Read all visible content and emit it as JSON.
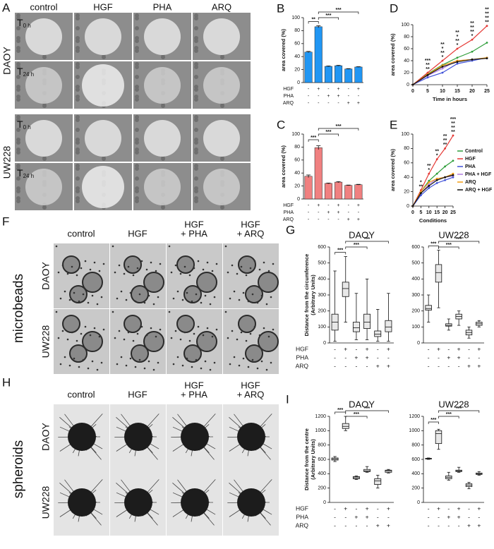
{
  "figure": {
    "A": {
      "letter": "A",
      "columns": [
        "control",
        "HGF",
        "PHA",
        "ARQ"
      ],
      "rows": [
        {
          "cell": "DAOY",
          "times": [
            {
              "base": "T",
              "sub": "0 h"
            },
            {
              "base": "T",
              "sub": "24 h"
            }
          ]
        },
        {
          "cell": "UW228",
          "times": [
            {
              "base": "T",
              "sub": "0 h"
            },
            {
              "base": "T",
              "sub": "24 h"
            }
          ]
        }
      ]
    },
    "F": {
      "letter": "F",
      "side": "microbeads",
      "columns": [
        [
          "control"
        ],
        [
          "HGF"
        ],
        [
          "HGF",
          "+ PHA"
        ],
        [
          "HGF",
          "+ ARQ"
        ]
      ],
      "rows": [
        "DAOY",
        "UW228"
      ]
    },
    "H": {
      "letter": "H",
      "side": "spheroids",
      "columns": [
        [
          "control"
        ],
        [
          "HGF"
        ],
        [
          "HGF",
          "+ PHA"
        ],
        [
          "HGF",
          "+ ARQ"
        ]
      ],
      "rows": [
        "DAOY",
        "UW228"
      ]
    }
  },
  "chart_data": [
    {
      "type": "bar",
      "panel": "B",
      "ylabel": "area covered (%)",
      "color": "#2196f3",
      "values": [
        47,
        86,
        25,
        26,
        21,
        24
      ],
      "errors": [
        1,
        1.5,
        0.6,
        0.6,
        0.5,
        0.5
      ],
      "ylim": [
        0,
        100
      ],
      "yticks": [
        0,
        20,
        40,
        60,
        80,
        100
      ],
      "brackets": [
        {
          "from": 0,
          "to": 1,
          "text": "**"
        },
        {
          "from": 1,
          "to": 3,
          "text": "***"
        },
        {
          "from": 1,
          "to": 5,
          "text": "***"
        }
      ],
      "conditions": [
        {
          "name": "HGF",
          "signs": [
            "-",
            "+",
            "-",
            "+",
            "-",
            "+"
          ]
        },
        {
          "name": "PHA",
          "signs": [
            "-",
            "-",
            "+",
            "+",
            "-",
            "-"
          ]
        },
        {
          "name": "ARQ",
          "signs": [
            "-",
            "-",
            "-",
            "-",
            "+",
            "+"
          ]
        }
      ]
    },
    {
      "type": "bar",
      "panel": "C",
      "ylabel": "area covered (%)",
      "color": "#f08080",
      "values": [
        35,
        79,
        24,
        26,
        21,
        22
      ],
      "errors": [
        2,
        3,
        0.6,
        0.8,
        0.5,
        0.6
      ],
      "ylim": [
        0,
        100
      ],
      "yticks": [
        0,
        20,
        40,
        60,
        80,
        100
      ],
      "brackets": [
        {
          "from": 0,
          "to": 1,
          "text": "***"
        },
        {
          "from": 1,
          "to": 3,
          "text": "***"
        },
        {
          "from": 1,
          "to": 5,
          "text": "***"
        }
      ],
      "conditions": [
        {
          "name": "HGF",
          "signs": [
            "-",
            "+",
            "-",
            "+",
            "-",
            "+"
          ]
        },
        {
          "name": "PHA",
          "signs": [
            "-",
            "-",
            "+",
            "+",
            "-",
            "-"
          ]
        },
        {
          "name": "ARQ",
          "signs": [
            "-",
            "-",
            "-",
            "-",
            "+",
            "+"
          ]
        }
      ]
    },
    {
      "type": "line",
      "panel": "D",
      "ylabel": "area covered (%)",
      "xlabel": "Time in hours",
      "x": [
        0,
        5,
        10,
        15,
        20,
        25
      ],
      "xlim": [
        0,
        25
      ],
      "xticks": [
        0,
        5,
        10,
        15,
        20,
        25
      ],
      "ylim": [
        0,
        100
      ],
      "yticks": [
        0,
        20,
        40,
        60,
        80,
        100
      ],
      "series": [
        {
          "color": "#2e9e3a",
          "values": [
            0,
            18,
            33,
            45,
            55,
            70
          ]
        },
        {
          "color": "#e53935",
          "values": [
            0,
            20,
            40,
            60,
            75,
            98
          ]
        },
        {
          "color": "#3f51d8",
          "values": [
            0,
            12,
            20,
            35,
            40,
            45
          ]
        },
        {
          "color": "#b07ce0",
          "values": [
            0,
            15,
            27,
            40,
            42,
            44
          ]
        },
        {
          "color": "#f39c12",
          "values": [
            0,
            17,
            32,
            40,
            42,
            45
          ]
        },
        {
          "color": "#111111",
          "values": [
            0,
            16,
            30,
            38,
            42,
            44
          ]
        }
      ],
      "stars": [
        {
          "x": 5,
          "marks": [
            {
              "text": "**",
              "color": "#3f51d8"
            },
            {
              "text": "**",
              "color": "#b07ce0"
            },
            {
              "text": "***",
              "color": "#e53935"
            }
          ]
        },
        {
          "x": 10,
          "marks": [
            {
              "text": "*",
              "color": "#3f51d8"
            },
            {
              "text": "**",
              "color": "#b07ce0"
            },
            {
              "text": "*",
              "color": "#f39c12"
            },
            {
              "text": "**",
              "color": "#e53935"
            }
          ]
        },
        {
          "x": 15,
          "marks": [
            {
              "text": "*",
              "color": "#3f51d8"
            },
            {
              "text": "**",
              "color": "#b07ce0"
            },
            {
              "text": "*",
              "color": "#f39c12"
            },
            {
              "text": "**",
              "color": "#e53935"
            }
          ]
        },
        {
          "x": 20,
          "marks": [
            {
              "text": "*",
              "color": "#e53935"
            },
            {
              "text": "**",
              "color": "#3f51d8"
            },
            {
              "text": "**",
              "color": "#b07ce0"
            },
            {
              "text": "**",
              "color": "#f39c12"
            }
          ]
        },
        {
          "x": 25,
          "marks": [
            {
              "text": "**",
              "color": "#f39c12"
            },
            {
              "text": "**",
              "color": "#b07ce0"
            },
            {
              "text": "**",
              "color": "#3f51d8"
            },
            {
              "text": "**",
              "color": "#e53935"
            }
          ]
        }
      ]
    },
    {
      "type": "line",
      "panel": "E",
      "ylabel": "area covered (%)",
      "xlabel": "Conditions",
      "legend": "right",
      "x": [
        0,
        5,
        10,
        15,
        20,
        25
      ],
      "xlim": [
        0,
        25
      ],
      "xticks": [
        0,
        5,
        10,
        15,
        20,
        25
      ],
      "ylim": [
        0,
        100
      ],
      "yticks": [
        0,
        20,
        40,
        60,
        80,
        100
      ],
      "series": [
        {
          "name": "Control",
          "color": "#2e9e3a",
          "values": [
            0,
            20,
            35,
            45,
            55,
            63
          ]
        },
        {
          "name": "HGF",
          "color": "#e53935",
          "values": [
            0,
            22,
            45,
            65,
            80,
            98
          ]
        },
        {
          "name": "PHA",
          "color": "#3f51d8",
          "values": [
            0,
            15,
            25,
            32,
            36,
            40
          ]
        },
        {
          "name": "PHA + HGF",
          "color": "#b07ce0",
          "values": [
            0,
            18,
            30,
            38,
            40,
            42
          ]
        },
        {
          "name": "ARQ",
          "color": "#f39c12",
          "values": [
            0,
            20,
            33,
            38,
            40,
            45
          ]
        },
        {
          "name": "ARQ + HGF",
          "color": "#111111",
          "values": [
            0,
            18,
            28,
            36,
            40,
            43
          ]
        }
      ],
      "stars": [
        {
          "x": 5,
          "marks": [
            {
              "text": "**",
              "color": "#3f51d8"
            },
            {
              "text": "*",
              "color": "#e53935"
            }
          ]
        },
        {
          "x": 10,
          "marks": [
            {
              "text": "*",
              "color": "#3f51d8"
            },
            {
              "text": "**",
              "color": "#e53935"
            }
          ]
        },
        {
          "x": 15,
          "marks": [
            {
              "text": "*",
              "color": "#3f51d8"
            },
            {
              "text": "**",
              "color": "#e53935"
            }
          ]
        },
        {
          "x": 20,
          "marks": [
            {
              "text": "**",
              "color": "#3f51d8"
            },
            {
              "text": "**",
              "color": "#b07ce0"
            },
            {
              "text": "**",
              "color": "#f39c12"
            }
          ]
        },
        {
          "x": 25,
          "marks": [
            {
              "text": "**",
              "color": "#f39c12"
            },
            {
              "text": "**",
              "color": "#3f51d8"
            },
            {
              "text": "**",
              "color": "#b07ce0"
            },
            {
              "text": "***",
              "color": "#e53935"
            }
          ]
        }
      ]
    },
    {
      "type": "box",
      "panel": "G",
      "title": "DAOY",
      "ylabel": [
        "Distance from the circumference",
        "(Arbitrary Units)"
      ],
      "ylim": [
        0,
        600
      ],
      "yticks": [
        0,
        100,
        200,
        300,
        400,
        500,
        600
      ],
      "boxes": [
        [
          10,
          80,
          130,
          180,
          450
        ],
        [
          130,
          290,
          340,
          380,
          540
        ],
        [
          20,
          70,
          95,
          130,
          310
        ],
        [
          20,
          90,
          130,
          180,
          400
        ],
        [
          10,
          40,
          55,
          75,
          210
        ],
        [
          10,
          70,
          100,
          140,
          310
        ]
      ],
      "brackets": [
        {
          "from": 0,
          "to": 1,
          "text": "***"
        },
        {
          "from": 1,
          "to": 3,
          "text": "***"
        },
        {
          "from": 1,
          "to": 5,
          "text": "***"
        }
      ],
      "conditions": [
        {
          "name": "HGF",
          "signs": [
            "-",
            "+",
            "-",
            "+",
            "-",
            "+"
          ]
        },
        {
          "name": "PHA",
          "signs": [
            "-",
            "-",
            "+",
            "+",
            "-",
            "-"
          ]
        },
        {
          "name": "ARQ",
          "signs": [
            "-",
            "-",
            "-",
            "-",
            "+",
            "+"
          ]
        }
      ]
    },
    {
      "type": "box",
      "title": "UW228",
      "ylim": [
        0,
        600
      ],
      "yticks": [
        0,
        100,
        200,
        300,
        400,
        500,
        600
      ],
      "boxes": [
        [
          130,
          205,
          215,
          235,
          300
        ],
        [
          220,
          380,
          440,
          490,
          580
        ],
        [
          80,
          105,
          110,
          120,
          150
        ],
        [
          110,
          150,
          165,
          180,
          200
        ],
        [
          30,
          50,
          65,
          80,
          100
        ],
        [
          100,
          110,
          120,
          130,
          140
        ]
      ],
      "brackets": [
        {
          "from": 0,
          "to": 1,
          "text": "***"
        },
        {
          "from": 1,
          "to": 3,
          "text": "***"
        },
        {
          "from": 1,
          "to": 5,
          "text": "***"
        }
      ],
      "conditions": [
        {
          "signs": [
            "-",
            "+",
            "-",
            "+",
            "-",
            "+"
          ]
        },
        {
          "signs": [
            "-",
            "-",
            "+",
            "+",
            "-",
            "-"
          ]
        },
        {
          "signs": [
            "-",
            "-",
            "-",
            "-",
            "+",
            "+"
          ]
        }
      ]
    },
    {
      "type": "box",
      "panel": "I",
      "title": "DAOY",
      "ylabel": [
        "Distance from the centre",
        "(Arbitrary Units)"
      ],
      "ylim": [
        0,
        1200
      ],
      "yticks": [
        0,
        200,
        400,
        600,
        800,
        1000,
        1200
      ],
      "boxes": [
        [
          570,
          590,
          605,
          620,
          640
        ],
        [
          1000,
          1030,
          1060,
          1100,
          1200
        ],
        [
          320,
          330,
          345,
          360,
          370
        ],
        [
          420,
          430,
          440,
          460,
          500
        ],
        [
          200,
          250,
          300,
          330,
          380
        ],
        [
          410,
          420,
          440,
          450,
          460
        ]
      ],
      "brackets": [
        {
          "from": 0,
          "to": 1,
          "text": "***"
        },
        {
          "from": 1,
          "to": 3,
          "text": "***"
        },
        {
          "from": 1,
          "to": 5,
          "text": "***"
        }
      ],
      "conditions": [
        {
          "name": "HGF",
          "signs": [
            "-",
            "+",
            "-",
            "+",
            "-",
            "+"
          ]
        },
        {
          "name": "PHA",
          "signs": [
            "-",
            "-",
            "+",
            "+",
            "-",
            "-"
          ]
        },
        {
          "name": "ARQ",
          "signs": [
            "-",
            "-",
            "-",
            "-",
            "+",
            "+"
          ]
        }
      ]
    },
    {
      "type": "box",
      "title": "UW228",
      "ylim": [
        0,
        1200
      ],
      "yticks": [
        0,
        200,
        400,
        600,
        800,
        1000,
        1200
      ],
      "boxes": [
        [
          600,
          605,
          610,
          615,
          620
        ],
        [
          740,
          820,
          960,
          1000,
          1020
        ],
        [
          310,
          330,
          350,
          370,
          420
        ],
        [
          420,
          430,
          440,
          450,
          490
        ],
        [
          190,
          220,
          240,
          260,
          280
        ],
        [
          380,
          390,
          400,
          410,
          430
        ]
      ],
      "brackets": [
        {
          "from": 0,
          "to": 1,
          "text": "***"
        },
        {
          "from": 1,
          "to": 3,
          "text": "***"
        },
        {
          "from": 1,
          "to": 5,
          "text": "***"
        }
      ],
      "conditions": [
        {
          "signs": [
            "-",
            "+",
            "-",
            "+",
            "-",
            "+"
          ]
        },
        {
          "signs": [
            "-",
            "-",
            "+",
            "+",
            "-",
            "-"
          ]
        },
        {
          "signs": [
            "-",
            "-",
            "-",
            "-",
            "+",
            "+"
          ]
        }
      ]
    }
  ]
}
